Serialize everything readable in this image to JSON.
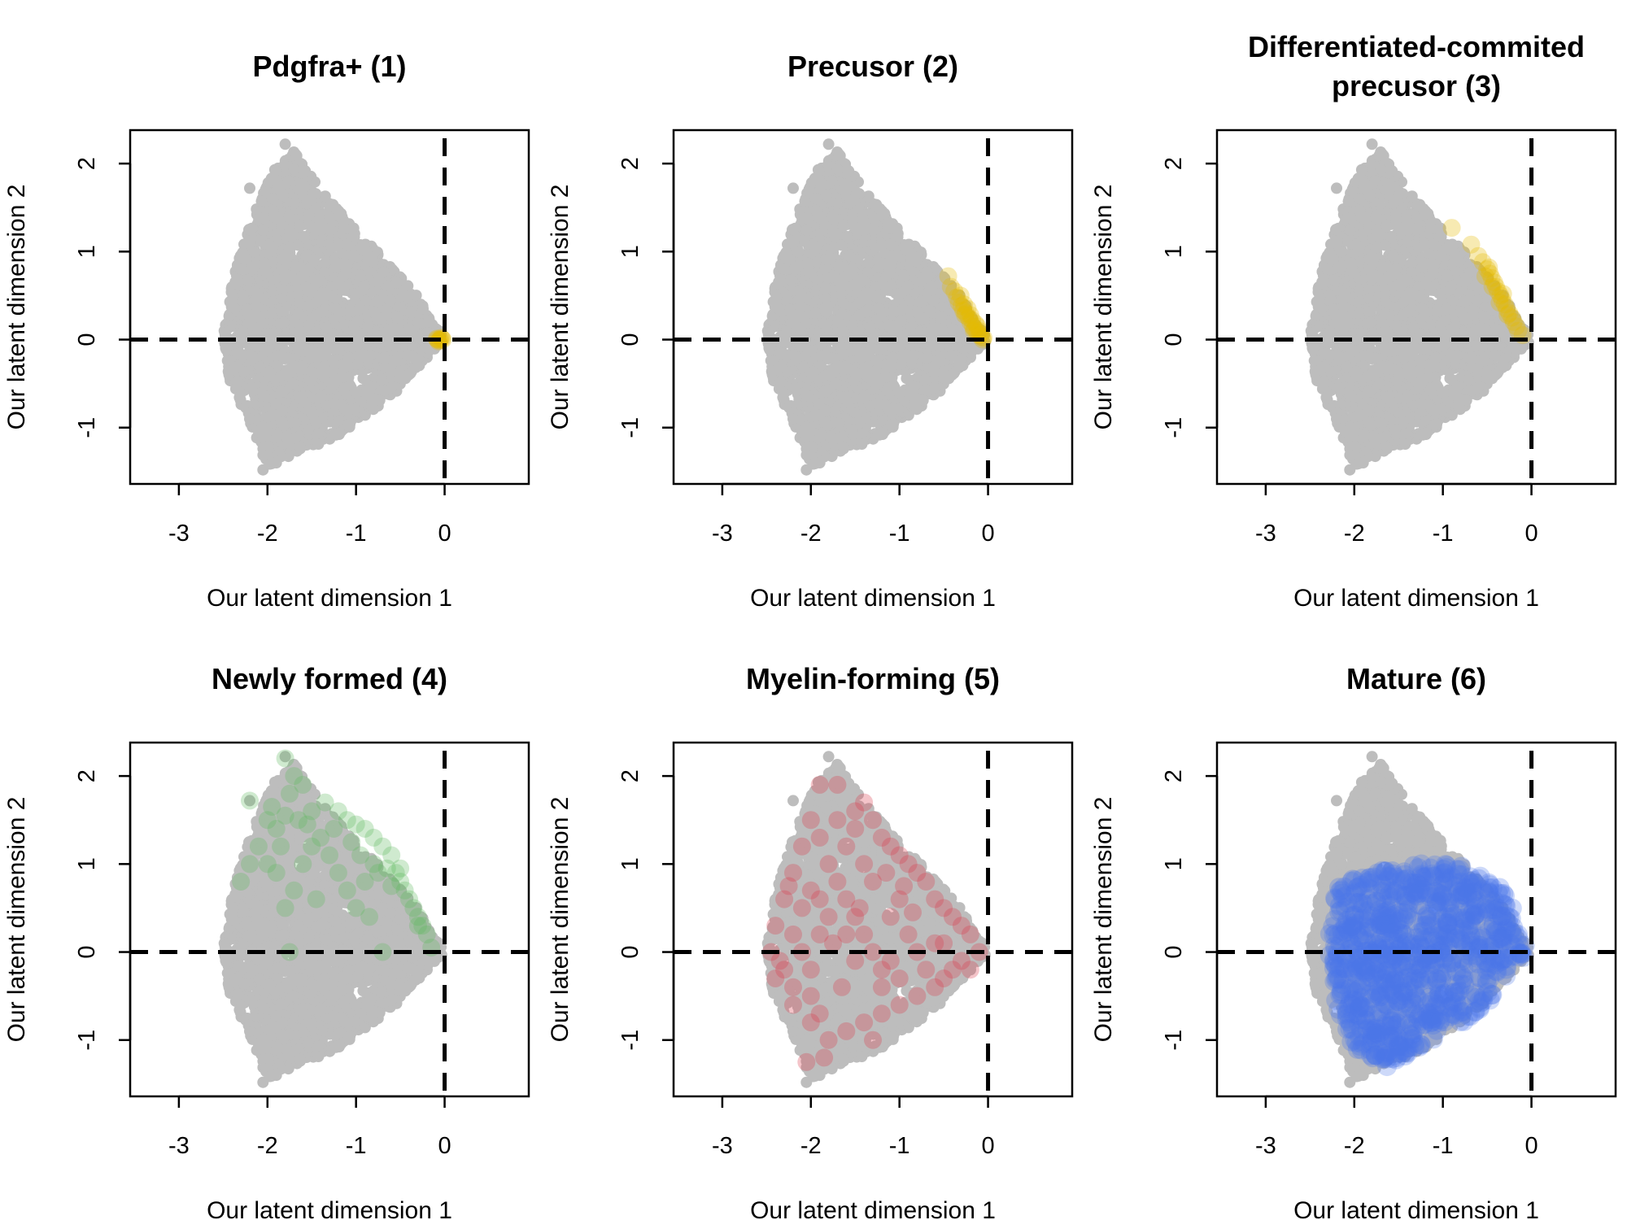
{
  "chart_data": [
    {
      "type": "scatter",
      "title": [
        "Pdgfra+ (1)"
      ],
      "xlabel": "Our latent dimension 1",
      "ylabel": "Our latent dimension 2",
      "xlim": [
        -3.55,
        0.95
      ],
      "ylim": [
        -1.64,
        2.38
      ],
      "xticks": [
        -3,
        -2,
        -1,
        0
      ],
      "yticks": [
        -1,
        0,
        1,
        2
      ],
      "reference_lines": {
        "x": 0,
        "y": 0,
        "style": "dashed"
      },
      "background": "all cells in grey",
      "highlight_color": "#e6b800",
      "highlight": [
        [
          -0.05,
          0.0
        ],
        [
          -0.08,
          0.0
        ],
        [
          -0.03,
          0.01
        ],
        [
          -0.06,
          -0.01
        ],
        [
          -0.04,
          0.02
        ],
        [
          -0.09,
          0.01
        ],
        [
          -0.02,
          0.0
        ],
        [
          -0.07,
          -0.02
        ]
      ]
    },
    {
      "type": "scatter",
      "title": [
        "Precusor (2)"
      ],
      "xlabel": "Our latent dimension 1",
      "ylabel": "Our latent dimension 2",
      "xlim": [
        -3.55,
        0.95
      ],
      "ylim": [
        -1.64,
        2.38
      ],
      "xticks": [
        -3,
        -2,
        -1,
        0
      ],
      "yticks": [
        -1,
        0,
        1,
        2
      ],
      "reference_lines": {
        "x": 0,
        "y": 0,
        "style": "dashed"
      },
      "background": "all cells in grey",
      "highlight_color": "#e6b800",
      "highlight": [
        [
          -0.45,
          0.72
        ],
        [
          -0.42,
          0.6
        ],
        [
          -0.38,
          0.55
        ],
        [
          -0.35,
          0.48
        ],
        [
          -0.33,
          0.42
        ],
        [
          -0.3,
          0.38
        ],
        [
          -0.28,
          0.33
        ],
        [
          -0.25,
          0.3
        ],
        [
          -0.22,
          0.25
        ],
        [
          -0.2,
          0.2
        ],
        [
          -0.17,
          0.15
        ],
        [
          -0.15,
          0.12
        ],
        [
          -0.12,
          0.08
        ],
        [
          -0.1,
          0.05
        ],
        [
          -0.07,
          0.03
        ],
        [
          -0.05,
          0.02
        ],
        [
          -0.27,
          0.4
        ],
        [
          -0.23,
          0.35
        ],
        [
          -0.18,
          0.22
        ],
        [
          -0.14,
          0.18
        ],
        [
          -0.1,
          0.1
        ],
        [
          -0.08,
          0.06
        ],
        [
          -0.31,
          0.5
        ],
        [
          -0.26,
          0.28
        ],
        [
          -0.2,
          0.28
        ],
        [
          -0.16,
          0.1
        ],
        [
          -0.12,
          0.15
        ],
        [
          -0.06,
          0.0
        ]
      ]
    },
    {
      "type": "scatter",
      "title": [
        "Differentiated-commited",
        "precusor (3)"
      ],
      "xlabel": "Our latent dimension 1",
      "ylabel": "Our latent dimension 2",
      "xlim": [
        -3.55,
        0.95
      ],
      "ylim": [
        -1.64,
        2.38
      ],
      "xticks": [
        -3,
        -2,
        -1,
        0
      ],
      "yticks": [
        -1,
        0,
        1,
        2
      ],
      "reference_lines": {
        "x": 0,
        "y": 0,
        "style": "dashed"
      },
      "background": "all cells in grey",
      "highlight_color": "#e6b800",
      "highlight": [
        [
          -0.9,
          1.27
        ],
        [
          -0.68,
          1.08
        ],
        [
          -0.6,
          0.95
        ],
        [
          -0.55,
          0.88
        ],
        [
          -0.5,
          0.8
        ],
        [
          -0.47,
          0.75
        ],
        [
          -0.45,
          0.7
        ],
        [
          -0.42,
          0.65
        ],
        [
          -0.4,
          0.6
        ],
        [
          -0.38,
          0.55
        ],
        [
          -0.35,
          0.5
        ],
        [
          -0.33,
          0.45
        ],
        [
          -0.3,
          0.4
        ],
        [
          -0.28,
          0.35
        ],
        [
          -0.25,
          0.3
        ],
        [
          -0.22,
          0.25
        ],
        [
          -0.2,
          0.2
        ],
        [
          -0.17,
          0.15
        ],
        [
          -0.15,
          0.1
        ],
        [
          -0.1,
          0.05
        ],
        [
          -0.52,
          0.72
        ],
        [
          -0.44,
          0.6
        ],
        [
          -0.36,
          0.42
        ],
        [
          -0.27,
          0.28
        ],
        [
          -0.48,
          0.82
        ],
        [
          -0.32,
          0.52
        ]
      ]
    },
    {
      "type": "scatter",
      "title": [
        "Newly formed (4)"
      ],
      "xlabel": "Our latent dimension 1",
      "ylabel": "Our latent dimension 2",
      "xlim": [
        -3.55,
        0.95
      ],
      "ylim": [
        -1.64,
        2.38
      ],
      "xticks": [
        -3,
        -2,
        -1,
        0
      ],
      "yticks": [
        -1,
        0,
        1,
        2
      ],
      "reference_lines": {
        "x": 0,
        "y": 0,
        "style": "dashed"
      },
      "background": "all cells in grey",
      "highlight_color": "#5fb85f",
      "highlight": [
        [
          -1.8,
          2.2
        ],
        [
          -1.7,
          2.0
        ],
        [
          -1.6,
          1.9
        ],
        [
          -1.75,
          1.8
        ],
        [
          -2.2,
          1.72
        ],
        [
          -2.0,
          1.5
        ],
        [
          -1.9,
          1.4
        ],
        [
          -1.8,
          1.55
        ],
        [
          -1.65,
          1.5
        ],
        [
          -1.5,
          1.6
        ],
        [
          -1.35,
          1.7
        ],
        [
          -1.2,
          1.6
        ],
        [
          -1.1,
          1.5
        ],
        [
          -1.0,
          1.45
        ],
        [
          -0.9,
          1.4
        ],
        [
          -0.8,
          1.3
        ],
        [
          -0.7,
          1.2
        ],
        [
          -0.6,
          1.1
        ],
        [
          -0.55,
          0.9
        ],
        [
          -0.5,
          0.8
        ],
        [
          -0.45,
          0.7
        ],
        [
          -0.4,
          0.6
        ],
        [
          -0.35,
          0.5
        ],
        [
          -0.3,
          0.4
        ],
        [
          -0.25,
          0.3
        ],
        [
          -0.2,
          0.2
        ],
        [
          -0.15,
          0.05
        ],
        [
          -2.3,
          0.8
        ],
        [
          -2.2,
          1.0
        ],
        [
          -2.1,
          1.2
        ],
        [
          -2.0,
          1.0
        ],
        [
          -1.9,
          0.9
        ],
        [
          -1.8,
          0.5
        ],
        [
          -1.7,
          0.7
        ],
        [
          -1.6,
          1.0
        ],
        [
          -1.5,
          1.2
        ],
        [
          -1.4,
          1.3
        ],
        [
          -1.3,
          1.1
        ],
        [
          -1.2,
          0.9
        ],
        [
          -1.1,
          0.7
        ],
        [
          -1.0,
          0.5
        ],
        [
          -0.9,
          0.8
        ],
        [
          -0.8,
          1.0
        ],
        [
          -0.85,
          0.4
        ],
        [
          -0.7,
          0.0
        ],
        [
          -1.75,
          0.0
        ],
        [
          -0.75,
          0.9
        ],
        [
          -0.65,
          0.95
        ],
        [
          -0.95,
          1.1
        ],
        [
          -1.45,
          0.6
        ],
        [
          -1.55,
          1.45
        ],
        [
          -1.25,
          1.4
        ],
        [
          -0.6,
          0.75
        ],
        [
          -0.5,
          0.95
        ],
        [
          -0.3,
          0.3
        ],
        [
          -1.05,
          1.25
        ],
        [
          -1.85,
          1.2
        ],
        [
          -1.95,
          1.65
        ]
      ]
    },
    {
      "type": "scatter",
      "title": [
        "Myelin-forming (5)"
      ],
      "xlabel": "Our latent dimension 1",
      "ylabel": "Our latent dimension 2",
      "xlim": [
        -3.55,
        0.95
      ],
      "ylim": [
        -1.64,
        2.38
      ],
      "xticks": [
        -3,
        -2,
        -1,
        0
      ],
      "yticks": [
        -1,
        0,
        1,
        2
      ],
      "reference_lines": {
        "x": 0,
        "y": 0,
        "style": "dashed"
      },
      "background": "all cells in grey",
      "highlight_color": "#d93b4b",
      "highlight": [
        [
          -1.9,
          1.9
        ],
        [
          -1.7,
          1.9
        ],
        [
          -1.5,
          1.6
        ],
        [
          -1.3,
          1.5
        ],
        [
          -1.2,
          1.3
        ],
        [
          -1.1,
          1.2
        ],
        [
          -1.0,
          1.1
        ],
        [
          -0.9,
          1.0
        ],
        [
          -0.8,
          0.9
        ],
        [
          -0.7,
          0.8
        ],
        [
          -0.6,
          0.6
        ],
        [
          -0.5,
          0.5
        ],
        [
          -0.4,
          0.4
        ],
        [
          -0.3,
          0.3
        ],
        [
          -0.2,
          0.2
        ],
        [
          -0.1,
          0.0
        ],
        [
          -0.2,
          -0.2
        ],
        [
          -0.4,
          -0.2
        ],
        [
          -0.5,
          -0.3
        ],
        [
          -0.6,
          -0.4
        ],
        [
          -0.8,
          -0.5
        ],
        [
          -1.0,
          -0.6
        ],
        [
          -1.2,
          -0.7
        ],
        [
          -1.4,
          -0.8
        ],
        [
          -1.6,
          -0.9
        ],
        [
          -1.8,
          -1.0
        ],
        [
          -2.0,
          -0.8
        ],
        [
          -2.2,
          -0.6
        ],
        [
          -2.4,
          -0.3
        ],
        [
          -2.45,
          0.0
        ],
        [
          -2.4,
          0.3
        ],
        [
          -2.3,
          0.6
        ],
        [
          -2.2,
          0.9
        ],
        [
          -2.1,
          1.2
        ],
        [
          -2.0,
          1.5
        ],
        [
          -1.9,
          1.3
        ],
        [
          -1.8,
          1.0
        ],
        [
          -1.7,
          0.8
        ],
        [
          -1.6,
          0.6
        ],
        [
          -1.5,
          0.4
        ],
        [
          -1.4,
          0.2
        ],
        [
          -1.3,
          0.0
        ],
        [
          -1.2,
          -0.2
        ],
        [
          -1.1,
          0.4
        ],
        [
          -1.0,
          0.6
        ],
        [
          -0.9,
          0.2
        ],
        [
          -0.8,
          0.0
        ],
        [
          -0.7,
          -0.2
        ],
        [
          -2.1,
          0.0
        ],
        [
          -2.0,
          -0.2
        ],
        [
          -1.9,
          0.2
        ],
        [
          -1.8,
          0.4
        ],
        [
          -2.3,
          -0.2
        ],
        [
          -2.2,
          0.2
        ],
        [
          -2.1,
          0.5
        ],
        [
          -2.0,
          0.7
        ],
        [
          -1.9,
          0.6
        ],
        [
          -1.6,
          1.2
        ],
        [
          -1.4,
          1.0
        ],
        [
          -1.3,
          0.8
        ],
        [
          -1.5,
          1.4
        ],
        [
          -1.7,
          1.5
        ],
        [
          -1.4,
          1.7
        ],
        [
          -1.6,
          0.2
        ],
        [
          -1.5,
          -0.1
        ],
        [
          -1.2,
          -0.4
        ],
        [
          -1.0,
          -0.3
        ],
        [
          -2.0,
          -0.5
        ],
        [
          -2.2,
          -0.4
        ],
        [
          -1.9,
          -0.7
        ],
        [
          -2.05,
          -1.25
        ],
        [
          -1.85,
          -1.2
        ],
        [
          -1.3,
          -1.0
        ],
        [
          -0.6,
          0.1
        ],
        [
          -0.3,
          -0.1
        ],
        [
          -0.5,
          0.1
        ],
        [
          -1.15,
          0.9
        ],
        [
          -0.95,
          0.75
        ],
        [
          -1.75,
          0.1
        ],
        [
          -2.35,
          -0.1
        ],
        [
          -2.25,
          0.75
        ],
        [
          -1.65,
          -0.4
        ],
        [
          -1.45,
          0.5
        ],
        [
          -0.85,
          0.45
        ],
        [
          -1.1,
          -0.1
        ]
      ]
    },
    {
      "type": "scatter",
      "title": [
        "Mature (6)"
      ],
      "xlabel": "Our latent dimension 1",
      "ylabel": "Our latent dimension 2",
      "xlim": [
        -3.55,
        0.95
      ],
      "ylim": [
        -1.64,
        2.38
      ],
      "xticks": [
        -3,
        -2,
        -1,
        0
      ],
      "yticks": [
        -1,
        0,
        1,
        2
      ],
      "reference_lines": {
        "x": 0,
        "y": 0,
        "style": "dashed"
      },
      "background": "all cells in grey",
      "highlight_color": "#4a76e8",
      "highlight_region": [
        [
          -2.2,
          0.8
        ],
        [
          -2.3,
          0.0
        ],
        [
          -2.2,
          -0.6
        ],
        [
          -2.0,
          -1.1
        ],
        [
          -1.7,
          -1.35
        ],
        [
          -1.3,
          -1.1
        ],
        [
          -0.6,
          -0.7
        ],
        [
          0.0,
          0.0
        ],
        [
          -0.3,
          0.7
        ],
        [
          -0.8,
          1.0
        ],
        [
          -1.3,
          1.0
        ],
        [
          -1.8,
          0.9
        ]
      ]
    }
  ],
  "background_cells": {
    "color": "#bdbdbd",
    "count": 2600
  }
}
